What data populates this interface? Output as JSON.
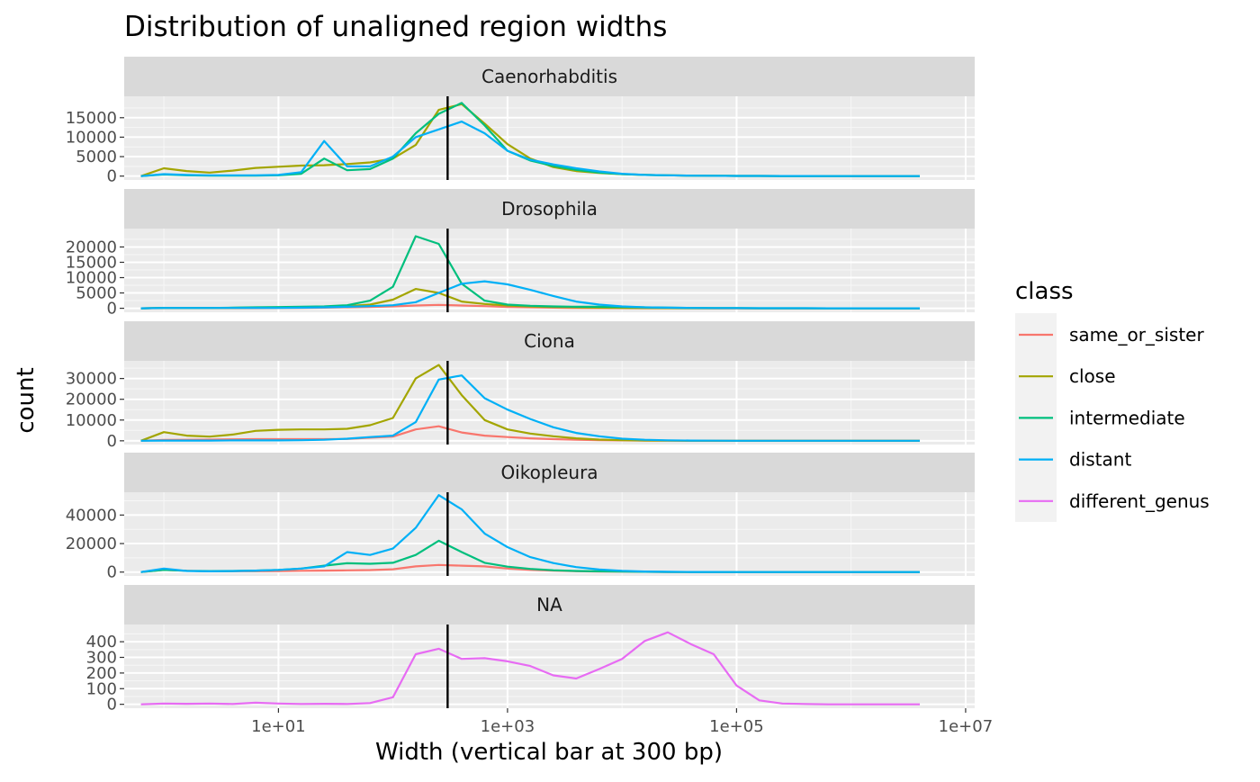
{
  "chart_data": {
    "type": "line",
    "title": "Distribution of unaligned region widths",
    "xlabel": "Width (vertical bar at 300 bp)",
    "ylabel": "count",
    "x_scale": "log10",
    "xlim": [
      0.45,
      12000000
    ],
    "x_ticks": [
      10,
      1000,
      100000,
      10000000
    ],
    "x_tick_labels": [
      "1e+01",
      "1e+03",
      "1e+05",
      "1e+07"
    ],
    "reference_line_x": 300,
    "grid": true,
    "legend": {
      "title": "class",
      "position": "right",
      "entries": [
        {
          "name": "same_or_sister",
          "color": "#F8766D"
        },
        {
          "name": "close",
          "color": "#A3A500"
        },
        {
          "name": "intermediate",
          "color": "#00BF7D"
        },
        {
          "name": "distant",
          "color": "#00B0F6"
        },
        {
          "name": "different_genus",
          "color": "#E76BF3"
        }
      ]
    },
    "x": [
      0.63,
      1,
      1.58,
      2.51,
      3.98,
      6.31,
      10,
      15.8,
      25.1,
      39.8,
      63.1,
      100,
      158,
      251,
      398,
      631,
      1000,
      1580,
      2510,
      3980,
      6310,
      10000,
      15800,
      25100,
      39800,
      63100,
      100000,
      158000,
      251000,
      398000,
      631000,
      1000000,
      1580000,
      2510000,
      3980000
    ],
    "panels": [
      {
        "strip": "Caenorhabditis",
        "ylim": [
          -1000,
          20500
        ],
        "y_ticks": [
          0,
          5000,
          10000,
          15000
        ],
        "y_tick_labels": [
          "0",
          "5000",
          "10000",
          "15000"
        ],
        "series": [
          {
            "name": "close",
            "values": [
              0,
              2000,
              1300,
              900,
              1400,
              2100,
              2400,
              2700,
              2800,
              3100,
              3500,
              4500,
              8000,
              17000,
              18500,
              13500,
              8200,
              4500,
              2300,
              1300,
              800,
              500,
              300,
              200,
              100,
              80,
              50,
              30,
              20,
              10,
              5,
              0,
              0,
              0,
              0
            ]
          },
          {
            "name": "intermediate",
            "values": [
              0,
              400,
              200,
              100,
              100,
              100,
              200,
              600,
              4500,
              1500,
              1800,
              4500,
              11000,
              16000,
              18800,
              13000,
              6500,
              4000,
              2600,
              1600,
              900,
              500,
              300,
              200,
              100,
              80,
              50,
              30,
              20,
              10,
              5,
              0,
              0,
              0,
              0
            ]
          },
          {
            "name": "distant",
            "values": [
              0,
              500,
              300,
              200,
              200,
              200,
              300,
              1000,
              9000,
              2500,
              2500,
              5000,
              10000,
              12000,
              14000,
              11000,
              6500,
              4200,
              3000,
              2000,
              1200,
              600,
              300,
              200,
              100,
              80,
              50,
              30,
              20,
              10,
              5,
              0,
              0,
              0,
              0
            ]
          }
        ]
      },
      {
        "strip": "Drosophila",
        "ylim": [
          -1300,
          26000
        ],
        "y_ticks": [
          0,
          5000,
          10000,
          15000,
          20000
        ],
        "y_tick_labels": [
          "0",
          "5000",
          "10000",
          "15000",
          "20000"
        ],
        "series": [
          {
            "name": "same_or_sister",
            "values": [
              0,
              50,
              50,
              50,
              50,
              50,
              100,
              150,
              200,
              300,
              400,
              600,
              900,
              1100,
              900,
              700,
              400,
              300,
              200,
              100,
              80,
              50,
              30,
              20,
              10,
              5,
              0,
              0,
              0,
              0,
              0,
              0,
              0,
              0,
              0
            ]
          },
          {
            "name": "close",
            "values": [
              0,
              100,
              100,
              100,
              150,
              200,
              250,
              300,
              400,
              700,
              1200,
              2800,
              6300,
              5000,
              2200,
              1400,
              900,
              600,
              400,
              300,
              200,
              100,
              80,
              50,
              30,
              20,
              10,
              5,
              0,
              0,
              0,
              0,
              0,
              0,
              0
            ]
          },
          {
            "name": "intermediate",
            "values": [
              0,
              100,
              100,
              100,
              200,
              300,
              400,
              500,
              600,
              1000,
              2500,
              7000,
              23500,
              21000,
              8000,
              2500,
              1200,
              800,
              600,
              500,
              500,
              400,
              300,
              200,
              100,
              80,
              50,
              30,
              20,
              10,
              5,
              0,
              0,
              0,
              0
            ]
          },
          {
            "name": "distant",
            "values": [
              0,
              100,
              100,
              100,
              100,
              100,
              100,
              200,
              300,
              500,
              700,
              1000,
              2000,
              5000,
              8000,
              8800,
              7800,
              6000,
              4000,
              2200,
              1200,
              600,
              300,
              200,
              100,
              80,
              50,
              30,
              20,
              10,
              5,
              0,
              0,
              0,
              0
            ]
          }
        ]
      },
      {
        "strip": "Ciona",
        "ylim": [
          -1800,
          38500
        ],
        "y_ticks": [
          0,
          10000,
          20000,
          30000
        ],
        "y_tick_labels": [
          "0",
          "10000",
          "20000",
          "30000"
        ],
        "series": [
          {
            "name": "same_or_sister",
            "values": [
              0,
              400,
              500,
              600,
              700,
              800,
              800,
              800,
              800,
              900,
              1500,
              2000,
              5500,
              7000,
              4000,
              2500,
              1800,
              1200,
              800,
              500,
              300,
              200,
              100,
              50,
              30,
              20,
              10,
              5,
              0,
              0,
              0,
              0,
              0,
              0,
              0
            ]
          },
          {
            "name": "close",
            "values": [
              0,
              4200,
              2500,
              2000,
              3000,
              4800,
              5300,
              5500,
              5500,
              5800,
              7500,
              11000,
              30000,
              36500,
              22000,
              10000,
              5500,
              3500,
              2200,
              1200,
              600,
              300,
              150,
              80,
              40,
              20,
              10,
              5,
              0,
              0,
              0,
              0,
              0,
              0,
              0
            ]
          },
          {
            "name": "distant",
            "values": [
              0,
              100,
              100,
              100,
              200,
              200,
              200,
              300,
              500,
              1000,
              1800,
              2500,
              9000,
              29500,
              31500,
              20500,
              15000,
              10500,
              6500,
              3800,
              2200,
              1000,
              500,
              250,
              120,
              60,
              30,
              15,
              5,
              0,
              0,
              0,
              0,
              0,
              0
            ]
          }
        ]
      },
      {
        "strip": "Oikopleura",
        "ylim": [
          -2700,
          56000
        ],
        "y_ticks": [
          0,
          20000,
          40000
        ],
        "y_tick_labels": [
          "0",
          "20000",
          "40000"
        ],
        "series": [
          {
            "name": "same_or_sister",
            "values": [
              0,
              1500,
              900,
              600,
              600,
              600,
              700,
              900,
              1000,
              1200,
              1400,
              2000,
              4000,
              5000,
              4500,
              4000,
              2500,
              1500,
              1000,
              600,
              400,
              300,
              200,
              100,
              50,
              30,
              15,
              5,
              0,
              0,
              0,
              0,
              0,
              0,
              0
            ]
          },
          {
            "name": "intermediate",
            "values": [
              0,
              1500,
              900,
              700,
              800,
              1000,
              1500,
              2500,
              4500,
              6200,
              5800,
              6500,
              12000,
              22000,
              14000,
              6500,
              3800,
              2200,
              1300,
              800,
              500,
              300,
              200,
              100,
              50,
              30,
              15,
              5,
              0,
              0,
              0,
              0,
              0,
              0,
              0
            ]
          },
          {
            "name": "distant",
            "values": [
              0,
              2500,
              800,
              500,
              700,
              1000,
              1500,
              2500,
              4000,
              14000,
              12000,
              16500,
              31000,
              54000,
              44000,
              27000,
              17500,
              10500,
              6300,
              3500,
              1800,
              900,
              400,
              200,
              100,
              50,
              25,
              10,
              5,
              0,
              0,
              0,
              0,
              0,
              0
            ]
          }
        ]
      },
      {
        "strip": "NA",
        "ylim": [
          -25,
          510
        ],
        "y_ticks": [
          0,
          100,
          200,
          300,
          400
        ],
        "y_tick_labels": [
          "0",
          "100",
          "200",
          "300",
          "400"
        ],
        "series": [
          {
            "name": "different_genus",
            "values": [
              0,
              5,
              3,
              5,
              2,
              10,
              5,
              2,
              3,
              2,
              8,
              45,
              320,
              355,
              290,
              295,
              275,
              245,
              185,
              165,
              225,
              290,
              405,
              460,
              385,
              320,
              120,
              25,
              5,
              2,
              0,
              0,
              0,
              0,
              0
            ]
          }
        ]
      }
    ]
  }
}
